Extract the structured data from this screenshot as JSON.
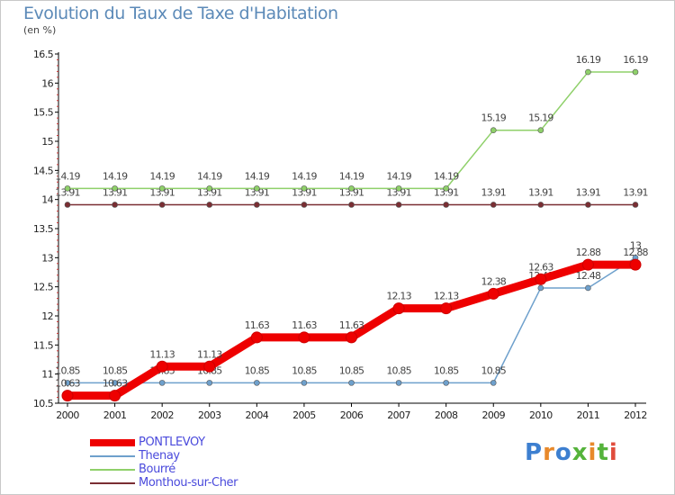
{
  "chart": {
    "title": "Evolution du Taux de Taxe d'Habitation",
    "unit_label": "(en %)"
  },
  "logo": {
    "text": "Proxiti",
    "letter_colors": [
      "#3d7fd0",
      "#e8892b",
      "#3d7fd0",
      "#55b33b",
      "#e8892b",
      "#55b33b",
      "#e04c3c"
    ]
  },
  "chart_data": {
    "type": "line",
    "title": "Evolution du Taux de Taxe d'Habitation",
    "ylabel": "(en %)",
    "xlabel": "",
    "x": [
      2000,
      2001,
      2002,
      2003,
      2004,
      2005,
      2006,
      2007,
      2008,
      2009,
      2010,
      2011,
      2012
    ],
    "ylim": [
      10.5,
      16.5
    ],
    "yticks": [
      10.5,
      11,
      11.5,
      12,
      12.5,
      13,
      13.5,
      14,
      14.5,
      15,
      15.5,
      16,
      16.5
    ],
    "ytick_labels": [
      "10.5",
      "11",
      "11.5",
      "12",
      "12.5",
      "13",
      "13.5",
      "14",
      "14.5",
      "15",
      "15.5",
      "16",
      "16.5"
    ],
    "grid": false,
    "legend_position": "bottom-left",
    "series": [
      {
        "name": "Monthou-sur-Cher",
        "color": "#7a2e33",
        "values": [
          13.91,
          13.91,
          13.91,
          13.91,
          13.91,
          13.91,
          13.91,
          13.91,
          13.91,
          13.91,
          13.91,
          13.91,
          13.91
        ],
        "labels": [
          "13.91",
          "13.91",
          "13.91",
          "13.91",
          "13.91",
          "13.91",
          "13.91",
          "13.91",
          "13.91",
          "13.91",
          "13.91",
          "13.91",
          "13.91"
        ]
      },
      {
        "name": "Bourré",
        "color": "#8fd06a",
        "values": [
          14.19,
          14.19,
          14.19,
          14.19,
          14.19,
          14.19,
          14.19,
          14.19,
          14.19,
          15.19,
          15.19,
          16.19,
          16.19
        ],
        "labels": [
          "14.19",
          "14.19",
          "14.19",
          "14.19",
          "14.19",
          "14.19",
          "14.19",
          "14.19",
          "14.19",
          "15.19",
          "15.19",
          "16.19",
          "16.19"
        ]
      },
      {
        "name": "Thenay",
        "color": "#6ea0cc",
        "values": [
          10.85,
          10.85,
          10.85,
          10.85,
          10.85,
          10.85,
          10.85,
          10.85,
          10.85,
          10.85,
          12.48,
          12.48,
          13
        ],
        "labels": [
          "10.85",
          "10.85",
          "10.85",
          "10.85",
          "10.85",
          "10.85",
          "10.85",
          "10.85",
          "10.85",
          "10.85",
          "12.48",
          "12.48",
          "13"
        ]
      },
      {
        "name": "PONTLEVOY",
        "color": "#ee0000",
        "values": [
          10.63,
          10.63,
          11.13,
          11.13,
          11.63,
          11.63,
          11.63,
          12.13,
          12.13,
          12.38,
          12.63,
          12.88,
          12.88
        ],
        "labels": [
          "10.63",
          "10.63",
          "11.13",
          "11.13",
          "11.63",
          "11.63",
          "11.63",
          "12.13",
          "12.13",
          "12.38",
          "12.63",
          "12.88",
          "12.88"
        ]
      }
    ],
    "legend": [
      "PONTLEVOY",
      "Thenay",
      "Bourré",
      "Monthou-sur-Cher"
    ]
  }
}
